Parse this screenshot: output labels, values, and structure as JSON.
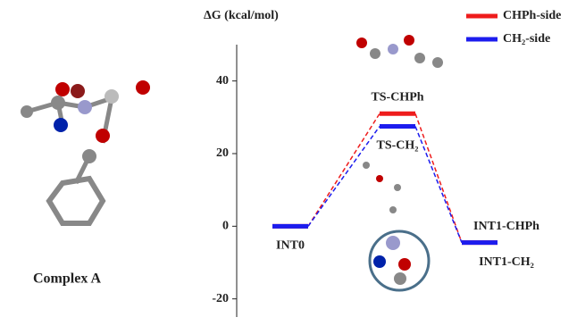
{
  "chart_data": {
    "type": "energy-profile",
    "y_label": "ΔG (kcal/mol)",
    "ylim": [
      -25,
      50
    ],
    "yticks": [
      -20,
      0,
      20,
      40
    ],
    "side_label": "Complex A",
    "series": [
      {
        "name": "CHPh-side",
        "color": "#ee1c1c",
        "values": [
          0,
          31,
          -4.5
        ],
        "labels": [
          null,
          "TS-CHPh",
          "INT1-CHPh"
        ]
      },
      {
        "name": "CH₂-side",
        "color": "#1c1cee",
        "values": [
          0,
          27.5,
          -4.5
        ],
        "labels": [
          "INT0",
          "TS-CH₂",
          "INT1-CH₂"
        ]
      }
    ]
  }
}
